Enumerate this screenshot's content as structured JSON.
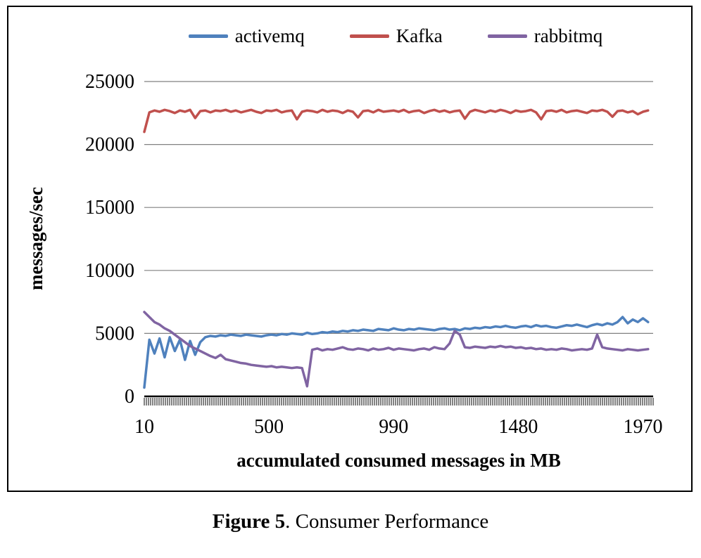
{
  "figure": {
    "caption_bold": "Figure 5",
    "caption_rest": ". Consumer Performance"
  },
  "chart_data": {
    "type": "line",
    "title": "",
    "xlabel": "accumulated consumed messages in MB",
    "ylabel": "messages/sec",
    "xlim": [
      10,
      2010
    ],
    "ylim": [
      0,
      25000
    ],
    "xticks": [
      10,
      500,
      990,
      1480,
      1970
    ],
    "yticks": [
      0,
      5000,
      10000,
      15000,
      20000,
      25000
    ],
    "grid": "horizontal",
    "legend_position": "top",
    "axis_color": "#000000",
    "gridline_color": "#808080",
    "x": [
      10,
      30,
      50,
      70,
      90,
      110,
      130,
      150,
      170,
      190,
      210,
      230,
      250,
      270,
      290,
      310,
      330,
      350,
      370,
      390,
      410,
      430,
      450,
      470,
      490,
      510,
      530,
      550,
      570,
      590,
      610,
      630,
      650,
      670,
      690,
      710,
      730,
      750,
      770,
      790,
      810,
      830,
      850,
      870,
      890,
      910,
      930,
      950,
      970,
      990,
      1010,
      1030,
      1050,
      1070,
      1090,
      1110,
      1130,
      1150,
      1170,
      1190,
      1210,
      1230,
      1250,
      1270,
      1290,
      1310,
      1330,
      1350,
      1370,
      1390,
      1410,
      1430,
      1450,
      1470,
      1490,
      1510,
      1530,
      1550,
      1570,
      1590,
      1610,
      1630,
      1650,
      1670,
      1690,
      1710,
      1730,
      1750,
      1770,
      1790,
      1810,
      1830,
      1850,
      1870,
      1890,
      1910,
      1930,
      1950,
      1970,
      1990
    ],
    "series": [
      {
        "name": "activemq",
        "color": "#4F81BD",
        "values": [
          700,
          4500,
          3400,
          4600,
          3100,
          4700,
          3600,
          4500,
          2900,
          4400,
          3300,
          4300,
          4700,
          4800,
          4750,
          4850,
          4800,
          4900,
          4850,
          4800,
          4900,
          4850,
          4800,
          4750,
          4850,
          4900,
          4850,
          4950,
          4900,
          5000,
          4950,
          4900,
          5050,
          4950,
          5000,
          5100,
          5050,
          5150,
          5100,
          5200,
          5150,
          5250,
          5200,
          5300,
          5250,
          5200,
          5350,
          5300,
          5250,
          5400,
          5300,
          5250,
          5350,
          5300,
          5400,
          5350,
          5300,
          5250,
          5350,
          5400,
          5300,
          5350,
          5250,
          5400,
          5350,
          5450,
          5400,
          5500,
          5450,
          5550,
          5500,
          5600,
          5500,
          5450,
          5550,
          5600,
          5500,
          5650,
          5550,
          5600,
          5500,
          5450,
          5550,
          5650,
          5600,
          5700,
          5600,
          5500,
          5650,
          5750,
          5650,
          5800,
          5700,
          5900,
          6300,
          5800,
          6100,
          5900,
          6200,
          5900
        ]
      },
      {
        "name": "Kafka",
        "color": "#C0504D",
        "values": [
          21000,
          22550,
          22700,
          22600,
          22750,
          22650,
          22500,
          22700,
          22600,
          22750,
          22100,
          22650,
          22700,
          22550,
          22700,
          22650,
          22750,
          22600,
          22700,
          22550,
          22650,
          22750,
          22600,
          22500,
          22700,
          22650,
          22750,
          22550,
          22650,
          22700,
          22000,
          22600,
          22700,
          22650,
          22550,
          22750,
          22600,
          22700,
          22650,
          22500,
          22700,
          22600,
          22150,
          22650,
          22700,
          22550,
          22750,
          22600,
          22650,
          22700,
          22600,
          22750,
          22550,
          22650,
          22700,
          22500,
          22650,
          22750,
          22600,
          22700,
          22550,
          22650,
          22700,
          22050,
          22600,
          22750,
          22650,
          22550,
          22700,
          22600,
          22750,
          22650,
          22500,
          22700,
          22600,
          22650,
          22750,
          22550,
          22000,
          22650,
          22700,
          22600,
          22750,
          22550,
          22650,
          22700,
          22600,
          22500,
          22700,
          22650,
          22750,
          22600,
          22200,
          22650,
          22700,
          22550,
          22650,
          22400,
          22600,
          22700
        ]
      },
      {
        "name": "rabbitmq",
        "color": "#8064A2",
        "values": [
          6700,
          6300,
          5900,
          5700,
          5400,
          5200,
          4900,
          4600,
          4300,
          4000,
          3800,
          3600,
          3400,
          3200,
          3050,
          3300,
          2950,
          2850,
          2750,
          2650,
          2600,
          2500,
          2450,
          2400,
          2350,
          2400,
          2300,
          2350,
          2300,
          2250,
          2300,
          2250,
          800,
          3700,
          3800,
          3650,
          3750,
          3700,
          3800,
          3900,
          3750,
          3700,
          3800,
          3750,
          3650,
          3800,
          3700,
          3750,
          3850,
          3700,
          3800,
          3750,
          3700,
          3650,
          3750,
          3800,
          3700,
          3900,
          3800,
          3750,
          4200,
          5200,
          4900,
          3900,
          3850,
          3950,
          3900,
          3850,
          3950,
          3900,
          4000,
          3900,
          3950,
          3850,
          3900,
          3800,
          3850,
          3750,
          3800,
          3700,
          3750,
          3700,
          3800,
          3750,
          3650,
          3700,
          3750,
          3700,
          3800,
          4900,
          3900,
          3800,
          3750,
          3700,
          3650,
          3750,
          3700,
          3650,
          3700,
          3750
        ]
      }
    ]
  }
}
